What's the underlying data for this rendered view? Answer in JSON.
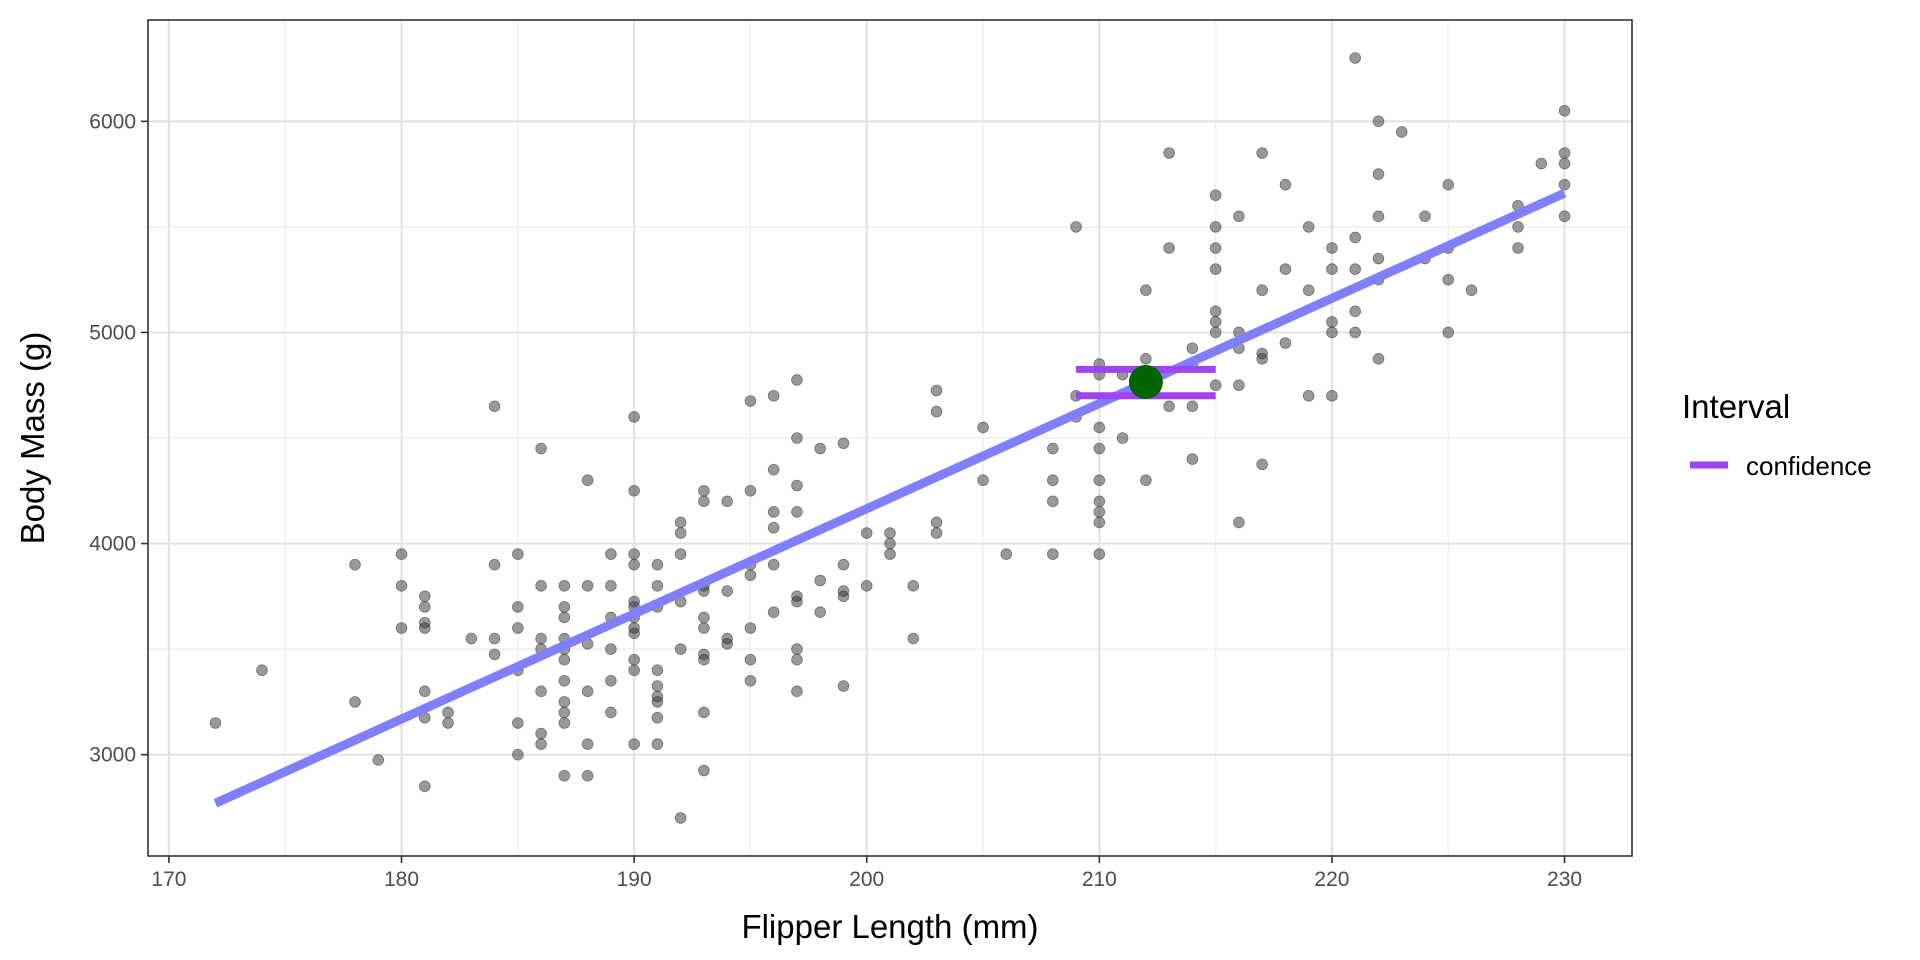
{
  "chart_data": {
    "type": "scatter",
    "title": "",
    "xlabel": "Flipper Length (mm)",
    "ylabel": "Body Mass (g)",
    "xlim": [
      169.1,
      232.9
    ],
    "ylim": [
      2520,
      6480
    ],
    "x_ticks": [
      170,
      180,
      190,
      200,
      210,
      220,
      230
    ],
    "y_ticks": [
      3000,
      4000,
      5000,
      6000
    ],
    "grid": true,
    "legend_position": "right",
    "legend": {
      "title": "Interval",
      "entries": [
        {
          "label": "confidence",
          "color": "#a142f4"
        }
      ]
    },
    "colors": {
      "points": "#333333",
      "fit_line": "#7f7fff",
      "interval": "#a142f4",
      "prediction_point": "#006400"
    },
    "series": [
      {
        "kind": "points",
        "points": [
          [
            172,
            3150
          ],
          [
            174,
            3400
          ],
          [
            178,
            3900
          ],
          [
            178,
            3250
          ],
          [
            179,
            2975
          ],
          [
            180,
            3950
          ],
          [
            180,
            3800
          ],
          [
            180,
            3600
          ],
          [
            181,
            3750
          ],
          [
            181,
            3700
          ],
          [
            181,
            3625
          ],
          [
            181,
            3600
          ],
          [
            181,
            3300
          ],
          [
            181,
            3175
          ],
          [
            181,
            2850
          ],
          [
            182,
            3200
          ],
          [
            182,
            3150
          ],
          [
            183,
            3550
          ],
          [
            184,
            4650
          ],
          [
            184,
            3900
          ],
          [
            184,
            3550
          ],
          [
            184,
            3475
          ],
          [
            185,
            3950
          ],
          [
            185,
            3700
          ],
          [
            185,
            3600
          ],
          [
            185,
            3400
          ],
          [
            185,
            3150
          ],
          [
            185,
            3000
          ],
          [
            186,
            4450
          ],
          [
            186,
            3800
          ],
          [
            186,
            3550
          ],
          [
            186,
            3500
          ],
          [
            186,
            3300
          ],
          [
            186,
            3100
          ],
          [
            186,
            3050
          ],
          [
            187,
            3800
          ],
          [
            187,
            3700
          ],
          [
            187,
            3650
          ],
          [
            187,
            3550
          ],
          [
            187,
            3500
          ],
          [
            187,
            3450
          ],
          [
            187,
            3350
          ],
          [
            187,
            3250
          ],
          [
            187,
            3200
          ],
          [
            187,
            3150
          ],
          [
            187,
            2900
          ],
          [
            188,
            4300
          ],
          [
            188,
            3800
          ],
          [
            188,
            3525
          ],
          [
            188,
            3300
          ],
          [
            188,
            3050
          ],
          [
            188,
            2900
          ],
          [
            189,
            3950
          ],
          [
            189,
            3800
          ],
          [
            189,
            3650
          ],
          [
            189,
            3500
          ],
          [
            189,
            3350
          ],
          [
            189,
            3200
          ],
          [
            190,
            4600
          ],
          [
            190,
            4250
          ],
          [
            190,
            3950
          ],
          [
            190,
            3900
          ],
          [
            190,
            3725
          ],
          [
            190,
            3700
          ],
          [
            190,
            3650
          ],
          [
            190,
            3600
          ],
          [
            190,
            3575
          ],
          [
            190,
            3450
          ],
          [
            190,
            3400
          ],
          [
            190,
            3050
          ],
          [
            191,
            3900
          ],
          [
            191,
            3800
          ],
          [
            191,
            3700
          ],
          [
            191,
            3400
          ],
          [
            191,
            3325
          ],
          [
            191,
            3275
          ],
          [
            191,
            3250
          ],
          [
            191,
            3175
          ],
          [
            191,
            3050
          ],
          [
            192,
            4100
          ],
          [
            192,
            4050
          ],
          [
            192,
            3950
          ],
          [
            192,
            3725
          ],
          [
            192,
            3500
          ],
          [
            192,
            2700
          ],
          [
            193,
            4250
          ],
          [
            193,
            4200
          ],
          [
            193,
            3800
          ],
          [
            193,
            3775
          ],
          [
            193,
            3650
          ],
          [
            193,
            3600
          ],
          [
            193,
            3475
          ],
          [
            193,
            3450
          ],
          [
            193,
            3200
          ],
          [
            193,
            2925
          ],
          [
            194,
            4200
          ],
          [
            194,
            3775
          ],
          [
            194,
            3550
          ],
          [
            194,
            3525
          ],
          [
            195,
            4675
          ],
          [
            195,
            4250
          ],
          [
            195,
            3900
          ],
          [
            195,
            3850
          ],
          [
            195,
            3600
          ],
          [
            195,
            3450
          ],
          [
            195,
            3350
          ],
          [
            196,
            4700
          ],
          [
            196,
            4350
          ],
          [
            196,
            4150
          ],
          [
            196,
            4075
          ],
          [
            196,
            3900
          ],
          [
            196,
            3675
          ],
          [
            197,
            4775
          ],
          [
            197,
            4500
          ],
          [
            197,
            4275
          ],
          [
            197,
            4150
          ],
          [
            197,
            3750
          ],
          [
            197,
            3725
          ],
          [
            197,
            3500
          ],
          [
            197,
            3450
          ],
          [
            197,
            3300
          ],
          [
            198,
            4450
          ],
          [
            198,
            3825
          ],
          [
            198,
            3675
          ],
          [
            199,
            4475
          ],
          [
            199,
            3900
          ],
          [
            199,
            3775
          ],
          [
            199,
            3750
          ],
          [
            199,
            3325
          ],
          [
            200,
            4050
          ],
          [
            200,
            3800
          ],
          [
            201,
            4050
          ],
          [
            201,
            4000
          ],
          [
            201,
            3950
          ],
          [
            202,
            3800
          ],
          [
            202,
            3550
          ],
          [
            203,
            4725
          ],
          [
            203,
            4625
          ],
          [
            203,
            4100
          ],
          [
            203,
            4050
          ],
          [
            205,
            4550
          ],
          [
            205,
            4300
          ],
          [
            206,
            3950
          ],
          [
            208,
            4450
          ],
          [
            208,
            4300
          ],
          [
            208,
            4200
          ],
          [
            208,
            3950
          ],
          [
            209,
            5500
          ],
          [
            209,
            4700
          ],
          [
            209,
            4600
          ],
          [
            210,
            4850
          ],
          [
            210,
            4800
          ],
          [
            210,
            4550
          ],
          [
            210,
            4450
          ],
          [
            210,
            4300
          ],
          [
            210,
            4200
          ],
          [
            210,
            4150
          ],
          [
            210,
            4100
          ],
          [
            210,
            3950
          ],
          [
            211,
            4800
          ],
          [
            211,
            4500
          ],
          [
            212,
            5200
          ],
          [
            212,
            4875
          ],
          [
            212,
            4300
          ],
          [
            213,
            5850
          ],
          [
            213,
            5400
          ],
          [
            213,
            4650
          ],
          [
            214,
            4925
          ],
          [
            214,
            4850
          ],
          [
            214,
            4650
          ],
          [
            214,
            4400
          ],
          [
            215,
            5650
          ],
          [
            215,
            5500
          ],
          [
            215,
            5400
          ],
          [
            215,
            5300
          ],
          [
            215,
            5100
          ],
          [
            215,
            5050
          ],
          [
            215,
            5000
          ],
          [
            215,
            4750
          ],
          [
            216,
            5550
          ],
          [
            216,
            5000
          ],
          [
            216,
            4925
          ],
          [
            216,
            4750
          ],
          [
            216,
            4100
          ],
          [
            217,
            5850
          ],
          [
            217,
            5200
          ],
          [
            217,
            4900
          ],
          [
            217,
            4875
          ],
          [
            217,
            4375
          ],
          [
            218,
            5700
          ],
          [
            218,
            5300
          ],
          [
            218,
            4950
          ],
          [
            219,
            5500
          ],
          [
            219,
            5200
          ],
          [
            219,
            4700
          ],
          [
            220,
            5400
          ],
          [
            220,
            5300
          ],
          [
            220,
            5050
          ],
          [
            220,
            5000
          ],
          [
            220,
            4700
          ],
          [
            221,
            6300
          ],
          [
            221,
            5450
          ],
          [
            221,
            5300
          ],
          [
            221,
            5100
          ],
          [
            221,
            5000
          ],
          [
            222,
            6000
          ],
          [
            222,
            5750
          ],
          [
            222,
            5550
          ],
          [
            222,
            5350
          ],
          [
            222,
            5250
          ],
          [
            222,
            4875
          ],
          [
            223,
            5950
          ],
          [
            224,
            5550
          ],
          [
            224,
            5350
          ],
          [
            225,
            5700
          ],
          [
            225,
            5400
          ],
          [
            225,
            5250
          ],
          [
            225,
            5000
          ],
          [
            226,
            5200
          ],
          [
            228,
            5600
          ],
          [
            228,
            5500
          ],
          [
            228,
            5400
          ],
          [
            229,
            5800
          ],
          [
            230,
            6050
          ],
          [
            230,
            5850
          ],
          [
            230,
            5800
          ],
          [
            230,
            5700
          ],
          [
            230,
            5550
          ]
        ]
      },
      {
        "kind": "line",
        "x": [
          172,
          230
        ],
        "y": [
          2770,
          5660
        ]
      },
      {
        "kind": "interval",
        "name": "confidence",
        "x_range": [
          209,
          215
        ],
        "upper": 4825,
        "lower": 4700
      },
      {
        "kind": "prediction",
        "x": 212,
        "y": 4765
      }
    ]
  }
}
